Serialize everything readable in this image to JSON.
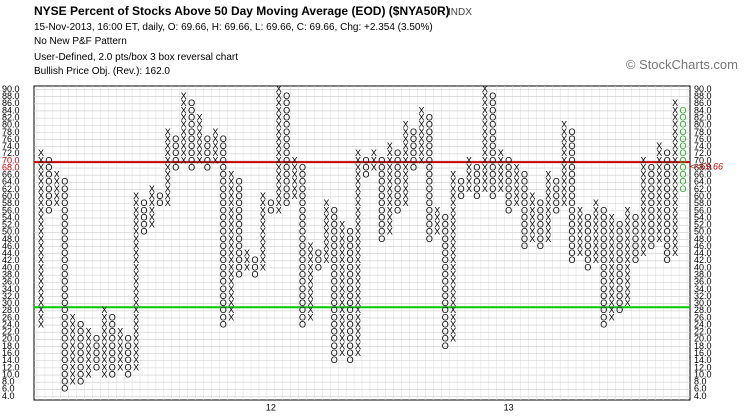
{
  "chart_data": {
    "type": "point-figure",
    "title": "NYSE Percent of Stocks Above 50 Day Moving Average (EOD) ($NYA50R)",
    "exchange": "INDX",
    "subtitle": "15-Nov-2013, 16:00 ET, daily, O: 69.66, H: 69.66, L: 69.66, C: 69.66, Chg: +2.354 (3.50%)",
    "pattern": "No New P&F Pattern",
    "settings": "User-Defined, 2.0 pts/box 3 box reversal chart",
    "objective": "Bullish Price Obj. (Rev.): 162.0",
    "watermark": "© StockCharts.com",
    "ylim": [
      3,
      91
    ],
    "yticks": [
      {
        "value": 90,
        "label": "90.0"
      },
      {
        "value": 88,
        "label": "88.0"
      },
      {
        "value": 86,
        "label": "86.0"
      },
      {
        "value": 84,
        "label": "84.0"
      },
      {
        "value": 82,
        "label": "82.0"
      },
      {
        "value": 80,
        "label": "80.0"
      },
      {
        "value": 78,
        "label": "78.0"
      },
      {
        "value": 76,
        "label": "76.0"
      },
      {
        "value": 74,
        "label": "74.0"
      },
      {
        "value": 72,
        "label": "72.0"
      },
      {
        "value": 70,
        "label": "70.0"
      },
      {
        "value": 68,
        "label": "68.0"
      },
      {
        "value": 66,
        "label": "66.0"
      },
      {
        "value": 64,
        "label": "64.0"
      },
      {
        "value": 62,
        "label": "62.0"
      },
      {
        "value": 60,
        "label": "60.0"
      },
      {
        "value": 58,
        "label": "58.0"
      },
      {
        "value": 56,
        "label": "56.0"
      },
      {
        "value": 54,
        "label": "54.0"
      },
      {
        "value": 52,
        "label": "52.0"
      },
      {
        "value": 50,
        "label": "50.0"
      },
      {
        "value": 48,
        "label": "48.0"
      },
      {
        "value": 46,
        "label": "46.0"
      },
      {
        "value": 44,
        "label": "44.0"
      },
      {
        "value": 42,
        "label": "42.0"
      },
      {
        "value": 40,
        "label": "40.0"
      },
      {
        "value": 38,
        "label": "38.0"
      },
      {
        "value": 36,
        "label": "36.0"
      },
      {
        "value": 34,
        "label": "34.0"
      },
      {
        "value": 32,
        "label": "32.0"
      },
      {
        "value": 30,
        "label": "30.0"
      },
      {
        "value": 28,
        "label": "28.0"
      },
      {
        "value": 26,
        "label": "26.0"
      },
      {
        "value": 24,
        "label": "24.0"
      },
      {
        "value": 22,
        "label": "22.0"
      },
      {
        "value": 20,
        "label": "20.0"
      },
      {
        "value": 18,
        "label": "18.0"
      },
      {
        "value": 16,
        "label": "16.0"
      },
      {
        "value": 14,
        "label": "14.0"
      },
      {
        "value": 12,
        "label": "12.0"
      },
      {
        "value": 10,
        "label": "10.0"
      },
      {
        "value": 8,
        "label": "8.0"
      },
      {
        "value": 6,
        "label": "6.0"
      },
      {
        "value": 4,
        "label": "4.0"
      }
    ],
    "box_size": 2,
    "box_color": "#000000",
    "last_color": "#22aa22",
    "close_line": {
      "value": 69.66,
      "label": "<<69.66",
      "color": "#cc0000"
    },
    "objective_line": {
      "value": 29,
      "color": "#00cc00"
    },
    "symbols": [
      "X",
      "O"
    ],
    "columns": [
      [
        0,
        24,
        72
      ],
      [
        1,
        56,
        70
      ],
      [
        0,
        58,
        66
      ],
      [
        1,
        6,
        64
      ],
      [
        0,
        8,
        26
      ],
      [
        1,
        8,
        24
      ],
      [
        0,
        10,
        22
      ],
      [
        1,
        12,
        20
      ],
      [
        0,
        10,
        28
      ],
      [
        1,
        10,
        26
      ],
      [
        0,
        12,
        22
      ],
      [
        1,
        10,
        20
      ],
      [
        0,
        12,
        60
      ],
      [
        1,
        50,
        58
      ],
      [
        0,
        52,
        62
      ],
      [
        1,
        58,
        60
      ],
      [
        0,
        58,
        78
      ],
      [
        1,
        68,
        76
      ],
      [
        0,
        70,
        88
      ],
      [
        1,
        68,
        86
      ],
      [
        0,
        70,
        82
      ],
      [
        1,
        68,
        76
      ],
      [
        0,
        70,
        78
      ],
      [
        1,
        24,
        76
      ],
      [
        0,
        26,
        66
      ],
      [
        1,
        38,
        64
      ],
      [
        0,
        40,
        44
      ],
      [
        1,
        38,
        42
      ],
      [
        0,
        40,
        60
      ],
      [
        1,
        56,
        58
      ],
      [
        0,
        56,
        90
      ],
      [
        1,
        58,
        88
      ],
      [
        0,
        60,
        70
      ],
      [
        1,
        24,
        68
      ],
      [
        0,
        26,
        46
      ],
      [
        1,
        40,
        44
      ],
      [
        0,
        42,
        58
      ],
      [
        1,
        14,
        56
      ],
      [
        0,
        16,
        52
      ],
      [
        1,
        14,
        50
      ],
      [
        0,
        16,
        72
      ],
      [
        1,
        66,
        70
      ],
      [
        0,
        68,
        72
      ],
      [
        1,
        48,
        70
      ],
      [
        0,
        50,
        74
      ],
      [
        1,
        56,
        72
      ],
      [
        0,
        58,
        80
      ],
      [
        1,
        68,
        78
      ],
      [
        0,
        70,
        84
      ],
      [
        1,
        48,
        82
      ],
      [
        0,
        50,
        56
      ],
      [
        1,
        18,
        54
      ],
      [
        0,
        20,
        66
      ],
      [
        1,
        60,
        64
      ],
      [
        0,
        62,
        70
      ],
      [
        1,
        60,
        68
      ],
      [
        0,
        62,
        90
      ],
      [
        1,
        60,
        88
      ],
      [
        0,
        62,
        72
      ],
      [
        1,
        56,
        70
      ],
      [
        0,
        58,
        68
      ],
      [
        1,
        46,
        66
      ],
      [
        0,
        48,
        60
      ],
      [
        1,
        46,
        58
      ],
      [
        0,
        48,
        66
      ],
      [
        1,
        56,
        64
      ],
      [
        0,
        58,
        80
      ],
      [
        1,
        42,
        78
      ],
      [
        0,
        44,
        56
      ],
      [
        1,
        40,
        54
      ],
      [
        0,
        42,
        58
      ],
      [
        1,
        24,
        56
      ],
      [
        0,
        26,
        54
      ],
      [
        1,
        28,
        52
      ],
      [
        0,
        30,
        56
      ],
      [
        1,
        42,
        54
      ],
      [
        0,
        44,
        70
      ],
      [
        1,
        46,
        68
      ],
      [
        0,
        48,
        74
      ],
      [
        1,
        42,
        72
      ],
      [
        0,
        44,
        86
      ],
      [
        1,
        62,
        84
      ]
    ],
    "categories": [
      null,
      null,
      null,
      null,
      null,
      null,
      null,
      null,
      null,
      null,
      null,
      null,
      null,
      null,
      null,
      null,
      null,
      null,
      null,
      null,
      null,
      null,
      null,
      null,
      null,
      null,
      null,
      null,
      null,
      "12",
      null,
      null,
      null,
      null,
      null,
      null,
      null,
      null,
      null,
      null,
      null,
      null,
      null,
      null,
      null,
      null,
      null,
      null,
      null,
      null,
      null,
      null,
      null,
      null,
      null,
      null,
      null,
      null,
      null,
      "13",
      null,
      null,
      null,
      null,
      null,
      null,
      null,
      null,
      null,
      null,
      null,
      null,
      null,
      null,
      null,
      null,
      null,
      null,
      null,
      null,
      null,
      null
    ]
  }
}
